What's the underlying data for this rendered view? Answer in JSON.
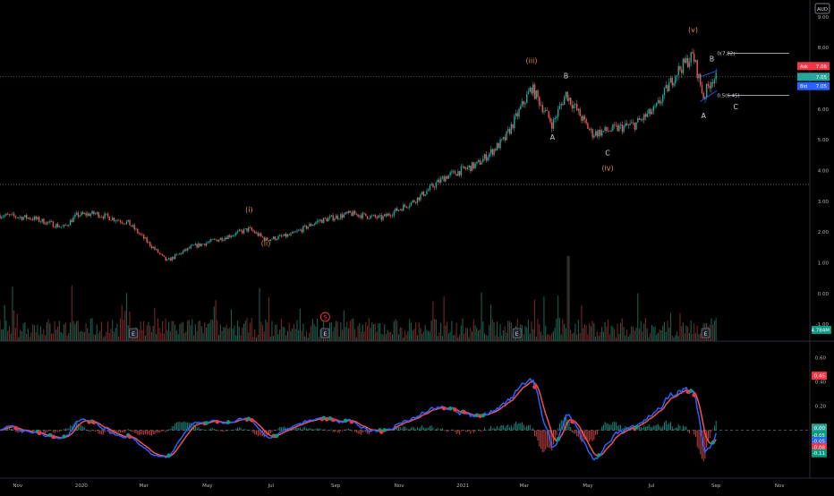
{
  "currency_badge": "AUD",
  "main_pane": {
    "y_axis_ticks": [
      "9.00",
      "8.00",
      "7.00",
      "6.00",
      "5.00",
      "4.00",
      "3.00",
      "2.00",
      "1.00",
      "0.00",
      "-1.00"
    ],
    "price_labels": [
      {
        "text": "Ask",
        "value": "7.06",
        "color": "#f23645"
      },
      {
        "text": "",
        "value": "7.05",
        "color": "#26a69a"
      },
      {
        "text": "Bid",
        "value": "7.05",
        "color": "#2962ff"
      }
    ],
    "volume_label": "4.784M",
    "horizontal_lines": [
      7.05,
      3.55
    ],
    "waves": [
      {
        "label": "(i)",
        "x": "2020-06-10",
        "y": 2.65,
        "color": "#e08a4a"
      },
      {
        "label": "(ii)",
        "x": "2020-06-26",
        "y": 1.55,
        "color": "#e08a4a"
      },
      {
        "label": "(iii)",
        "x": "2021-03-08",
        "y": 7.5,
        "color": "#e08a4a"
      },
      {
        "label": "B",
        "x": "2021-04-10",
        "y": 7.0,
        "color": "#d1d4dc"
      },
      {
        "label": "A",
        "x": "2021-03-28",
        "y": 5.0,
        "color": "#d1d4dc"
      },
      {
        "label": "C",
        "x": "2021-05-20",
        "y": 4.5,
        "color": "#d1d4dc"
      },
      {
        "label": "(iv)",
        "x": "2021-05-20",
        "y": 4.0,
        "color": "#e08a4a"
      },
      {
        "label": "(v)",
        "x": "2021-08-10",
        "y": 8.5,
        "color": "#e08a4a"
      },
      {
        "label": "B",
        "x": "2021-08-28",
        "y": 7.55,
        "color": "#d1d4dc"
      },
      {
        "label": "A",
        "x": "2021-08-20",
        "y": 5.7,
        "color": "#d1d4dc"
      },
      {
        "label": "C",
        "x": "2021-09-20",
        "y": 6.0,
        "color": "#d1d4dc"
      }
    ],
    "fib_levels": [
      {
        "label": "0(7.82)",
        "value": 7.82
      },
      {
        "label": "0.5(6.45)",
        "value": 6.45
      }
    ],
    "earnings_markers": [
      "E",
      "E",
      "E",
      "E"
    ],
    "split_marker": "S"
  },
  "osc_pane": {
    "y_axis_ticks": [
      "0.60",
      "0.40",
      "0.20",
      "0.00",
      "-0.20"
    ],
    "value_labels": [
      {
        "value": "0.45",
        "color": "#f23645"
      },
      {
        "value": "0.00",
        "color": "#26a69a"
      },
      {
        "value": "-0.05",
        "color": "#089981"
      },
      {
        "value": "-0.05",
        "color": "#2962ff"
      },
      {
        "value": "-0.08",
        "color": "#f23645"
      },
      {
        "value": "-0.11",
        "color": "#089981"
      }
    ]
  },
  "x_axis_labels": [
    "Nov",
    "2020",
    "Mar",
    "May",
    "Jul",
    "Sep",
    "Nov",
    "2021",
    "Mar",
    "May",
    "Jul",
    "Sep",
    "Nov"
  ],
  "chart_data": {
    "type": "line",
    "title": "",
    "xlabel": "",
    "ylabel": "",
    "x_range": [
      "2019-10-15",
      "2021-11-30"
    ],
    "ylim": [
      -1.55,
      9.55
    ],
    "y_scale": "linear",
    "grid": false,
    "series": [
      {
        "x": [
          "2019-10-15",
          "2019-11-15",
          "2019-12-15",
          "2019-12-28",
          "2020-01-15",
          "2020-02-15",
          "2020-03-23",
          "2020-04-15",
          "2020-05-15",
          "2020-06-10",
          "2020-06-26",
          "2020-07-20",
          "2020-08-15",
          "2020-09-15",
          "2020-10-15",
          "2020-11-15",
          "2020-12-15",
          "2021-01-15",
          "2021-02-10",
          "2021-03-08",
          "2021-03-28",
          "2021-04-10",
          "2021-05-05",
          "2021-05-20",
          "2021-06-15",
          "2021-07-05",
          "2021-07-25",
          "2021-08-10",
          "2021-08-20",
          "2021-08-28"
        ],
        "values": [
          2.55,
          2.45,
          2.15,
          2.55,
          2.6,
          2.3,
          1.05,
          1.5,
          1.8,
          2.1,
          1.75,
          1.9,
          2.35,
          2.6,
          2.45,
          3.0,
          3.8,
          4.2,
          5.0,
          6.7,
          5.5,
          6.5,
          5.2,
          5.3,
          5.5,
          6.0,
          7.2,
          7.75,
          6.4,
          7.0
        ]
      }
    ]
  }
}
